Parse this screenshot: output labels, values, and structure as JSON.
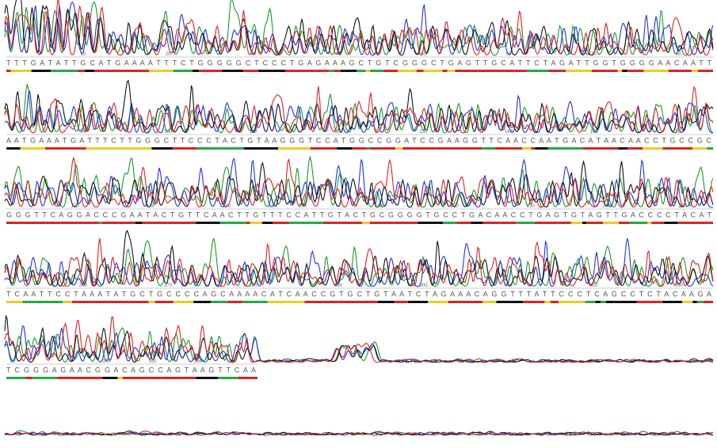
{
  "rows": [
    {
      "sequence": "T T T G A T A T T G  C A T G A A A A T T T C T  G G G G G C T C C C T  G A G  A A A  G C T G T C  G G G C T  G A G T T  G C  A  T T C T A G A T T G G  T G G G G A A C A  A T T",
      "positions": [
        10,
        20,
        30,
        40,
        50,
        60,
        70,
        80
      ]
    },
    {
      "sequence": "A A T G A  A A T G A T T T C T T G G G C T T C C C T A C T G  T A A G G G T C C A T G G C C G G  A T C C G A A G G T  T C A A C C A A T G A C A T A A C A A C C  T G C C G C",
      "positions": [
        90,
        100,
        110,
        120,
        130,
        140,
        150,
        160
      ]
    },
    {
      "sequence": "G  G G T T C A G G A C C C G A A T A C T G T  T C A A C T T G T T T C C A T T G  T A C T G C G G G G T G C C T G A C A A C C T G A G T G T A G T T G A C C C C T A C A T",
      "positions": [
        170,
        180,
        190,
        200,
        210,
        220,
        230,
        240,
        250
      ]
    },
    {
      "sequence": "T C A  A T T C C T  A A A T A T G C T G C C C C A G C A A A A C A T C A  A C C G T G C T G T A A T C T A G  A A A C A G G T T T A T T C C C T  C A G C C T C T A C A A G A",
      "positions": [
        260,
        270,
        280,
        290,
        300,
        310,
        320,
        330
      ]
    },
    {
      "sequence": "T C G G G A G A A C G G A C A G C C A G T A A G T  T C A A",
      "positions": [
        340,
        350,
        360
      ]
    }
  ]
}
